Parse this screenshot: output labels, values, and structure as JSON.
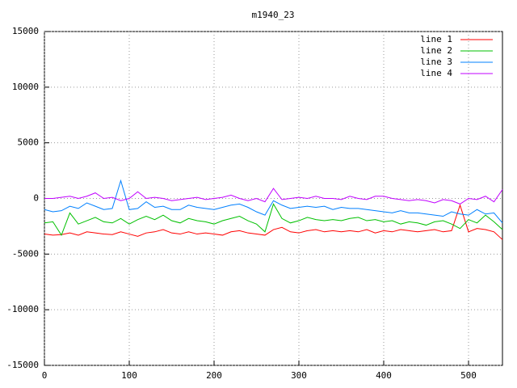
{
  "chart_data": {
    "type": "line",
    "title": "m1940_23",
    "x": [
      0,
      10,
      20,
      30,
      40,
      50,
      60,
      70,
      80,
      90,
      100,
      110,
      120,
      130,
      140,
      150,
      160,
      170,
      180,
      190,
      200,
      210,
      220,
      230,
      240,
      250,
      260,
      270,
      280,
      290,
      300,
      310,
      320,
      330,
      340,
      350,
      360,
      370,
      380,
      390,
      400,
      410,
      420,
      430,
      440,
      450,
      460,
      470,
      480,
      490,
      500,
      510,
      520,
      530,
      540
    ],
    "series": [
      {
        "name": "line 1",
        "color": "#ff0000",
        "values": [
          -3200,
          -3300,
          -3250,
          -3100,
          -3300,
          -3000,
          -3100,
          -3200,
          -3250,
          -3000,
          -3200,
          -3400,
          -3100,
          -3000,
          -2800,
          -3100,
          -3200,
          -3000,
          -3200,
          -3100,
          -3200,
          -3300,
          -3000,
          -2900,
          -3100,
          -3200,
          -3300,
          -2800,
          -2600,
          -3000,
          -3100,
          -2900,
          -2800,
          -3000,
          -2900,
          -3000,
          -2900,
          -3000,
          -2800,
          -3100,
          -2900,
          -3000,
          -2800,
          -2900,
          -3000,
          -2900,
          -2800,
          -3000,
          -2900,
          -600,
          -3000,
          -2700,
          -2800,
          -3000,
          -3700
        ]
      },
      {
        "name": "line 2",
        "color": "#00c000",
        "values": [
          -2200,
          -2100,
          -3300,
          -1300,
          -2300,
          -2000,
          -1700,
          -2100,
          -2200,
          -1800,
          -2300,
          -1900,
          -1600,
          -1900,
          -1500,
          -2000,
          -2200,
          -1800,
          -2000,
          -2100,
          -2300,
          -2000,
          -1800,
          -1600,
          -2000,
          -2300,
          -3000,
          -500,
          -1800,
          -2200,
          -2000,
          -1700,
          -1900,
          -2000,
          -1900,
          -2000,
          -1800,
          -1700,
          -2000,
          -1900,
          -2100,
          -2000,
          -2300,
          -2100,
          -2200,
          -2400,
          -2100,
          -2000,
          -2300,
          -2700,
          -1900,
          -2200,
          -1500,
          -2100,
          -2800
        ]
      },
      {
        "name": "line 3",
        "color": "#0080ff",
        "values": [
          -1000,
          -1200,
          -1100,
          -700,
          -900,
          -400,
          -700,
          -1000,
          -900,
          1600,
          -1000,
          -900,
          -300,
          -800,
          -700,
          -1000,
          -1000,
          -600,
          -800,
          -900,
          -1000,
          -800,
          -600,
          -500,
          -800,
          -1200,
          -1500,
          -200,
          -600,
          -900,
          -800,
          -700,
          -800,
          -700,
          -1000,
          -800,
          -900,
          -900,
          -1000,
          -1100,
          -1200,
          -1300,
          -1100,
          -1300,
          -1300,
          -1400,
          -1500,
          -1600,
          -1200,
          -1400,
          -1500,
          -1000,
          -1400,
          -1300,
          -2200
        ]
      },
      {
        "name": "line 4",
        "color": "#c000ff",
        "values": [
          0,
          0,
          100,
          200,
          0,
          200,
          500,
          0,
          100,
          -200,
          0,
          600,
          0,
          100,
          0,
          -200,
          -100,
          0,
          100,
          -100,
          0,
          100,
          300,
          0,
          -200,
          0,
          -300,
          900,
          -100,
          0,
          100,
          0,
          200,
          0,
          0,
          -100,
          200,
          0,
          -100,
          200,
          200,
          0,
          -100,
          -200,
          -100,
          -200,
          -400,
          -100,
          -200,
          -500,
          0,
          -100,
          200,
          -300,
          800
        ]
      }
    ],
    "xlim": [
      0,
      540
    ],
    "xticks": [
      0,
      100,
      200,
      300,
      400,
      500
    ],
    "ylim": [
      -15000,
      15000
    ],
    "yticks": [
      -15000,
      -10000,
      -5000,
      0,
      5000,
      10000,
      15000
    ],
    "grid": true,
    "legend": "top-right"
  }
}
